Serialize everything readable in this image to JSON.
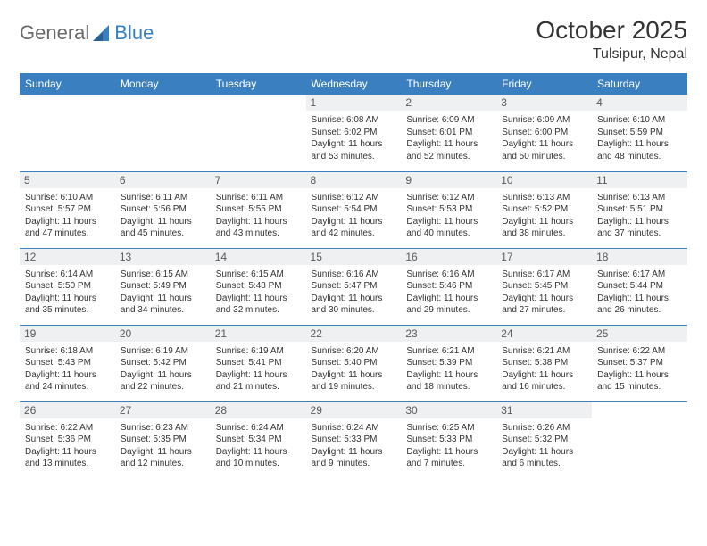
{
  "brand": {
    "part1": "General",
    "part2": "Blue"
  },
  "title": "October 2025",
  "location": "Tulsipur, Nepal",
  "colors": {
    "header_bg": "#3a7fc0",
    "header_fg": "#ffffff",
    "daynum_bg": "#eef0f1",
    "daynum_fg": "#5a5a5a",
    "text": "#333333",
    "row_border": "#3a7fc0",
    "logo_gray": "#6a6a6a",
    "logo_blue": "#3a7fc0"
  },
  "day_headers": [
    "Sunday",
    "Monday",
    "Tuesday",
    "Wednesday",
    "Thursday",
    "Friday",
    "Saturday"
  ],
  "weeks": [
    [
      null,
      null,
      null,
      {
        "n": "1",
        "sr": "6:08 AM",
        "ss": "6:02 PM",
        "dl": "11 hours and 53 minutes."
      },
      {
        "n": "2",
        "sr": "6:09 AM",
        "ss": "6:01 PM",
        "dl": "11 hours and 52 minutes."
      },
      {
        "n": "3",
        "sr": "6:09 AM",
        "ss": "6:00 PM",
        "dl": "11 hours and 50 minutes."
      },
      {
        "n": "4",
        "sr": "6:10 AM",
        "ss": "5:59 PM",
        "dl": "11 hours and 48 minutes."
      }
    ],
    [
      {
        "n": "5",
        "sr": "6:10 AM",
        "ss": "5:57 PM",
        "dl": "11 hours and 47 minutes."
      },
      {
        "n": "6",
        "sr": "6:11 AM",
        "ss": "5:56 PM",
        "dl": "11 hours and 45 minutes."
      },
      {
        "n": "7",
        "sr": "6:11 AM",
        "ss": "5:55 PM",
        "dl": "11 hours and 43 minutes."
      },
      {
        "n": "8",
        "sr": "6:12 AM",
        "ss": "5:54 PM",
        "dl": "11 hours and 42 minutes."
      },
      {
        "n": "9",
        "sr": "6:12 AM",
        "ss": "5:53 PM",
        "dl": "11 hours and 40 minutes."
      },
      {
        "n": "10",
        "sr": "6:13 AM",
        "ss": "5:52 PM",
        "dl": "11 hours and 38 minutes."
      },
      {
        "n": "11",
        "sr": "6:13 AM",
        "ss": "5:51 PM",
        "dl": "11 hours and 37 minutes."
      }
    ],
    [
      {
        "n": "12",
        "sr": "6:14 AM",
        "ss": "5:50 PM",
        "dl": "11 hours and 35 minutes."
      },
      {
        "n": "13",
        "sr": "6:15 AM",
        "ss": "5:49 PM",
        "dl": "11 hours and 34 minutes."
      },
      {
        "n": "14",
        "sr": "6:15 AM",
        "ss": "5:48 PM",
        "dl": "11 hours and 32 minutes."
      },
      {
        "n": "15",
        "sr": "6:16 AM",
        "ss": "5:47 PM",
        "dl": "11 hours and 30 minutes."
      },
      {
        "n": "16",
        "sr": "6:16 AM",
        "ss": "5:46 PM",
        "dl": "11 hours and 29 minutes."
      },
      {
        "n": "17",
        "sr": "6:17 AM",
        "ss": "5:45 PM",
        "dl": "11 hours and 27 minutes."
      },
      {
        "n": "18",
        "sr": "6:17 AM",
        "ss": "5:44 PM",
        "dl": "11 hours and 26 minutes."
      }
    ],
    [
      {
        "n": "19",
        "sr": "6:18 AM",
        "ss": "5:43 PM",
        "dl": "11 hours and 24 minutes."
      },
      {
        "n": "20",
        "sr": "6:19 AM",
        "ss": "5:42 PM",
        "dl": "11 hours and 22 minutes."
      },
      {
        "n": "21",
        "sr": "6:19 AM",
        "ss": "5:41 PM",
        "dl": "11 hours and 21 minutes."
      },
      {
        "n": "22",
        "sr": "6:20 AM",
        "ss": "5:40 PM",
        "dl": "11 hours and 19 minutes."
      },
      {
        "n": "23",
        "sr": "6:21 AM",
        "ss": "5:39 PM",
        "dl": "11 hours and 18 minutes."
      },
      {
        "n": "24",
        "sr": "6:21 AM",
        "ss": "5:38 PM",
        "dl": "11 hours and 16 minutes."
      },
      {
        "n": "25",
        "sr": "6:22 AM",
        "ss": "5:37 PM",
        "dl": "11 hours and 15 minutes."
      }
    ],
    [
      {
        "n": "26",
        "sr": "6:22 AM",
        "ss": "5:36 PM",
        "dl": "11 hours and 13 minutes."
      },
      {
        "n": "27",
        "sr": "6:23 AM",
        "ss": "5:35 PM",
        "dl": "11 hours and 12 minutes."
      },
      {
        "n": "28",
        "sr": "6:24 AM",
        "ss": "5:34 PM",
        "dl": "11 hours and 10 minutes."
      },
      {
        "n": "29",
        "sr": "6:24 AM",
        "ss": "5:33 PM",
        "dl": "11 hours and 9 minutes."
      },
      {
        "n": "30",
        "sr": "6:25 AM",
        "ss": "5:33 PM",
        "dl": "11 hours and 7 minutes."
      },
      {
        "n": "31",
        "sr": "6:26 AM",
        "ss": "5:32 PM",
        "dl": "11 hours and 6 minutes."
      },
      null
    ]
  ],
  "labels": {
    "sunrise": "Sunrise:",
    "sunset": "Sunset:",
    "daylight": "Daylight:"
  }
}
